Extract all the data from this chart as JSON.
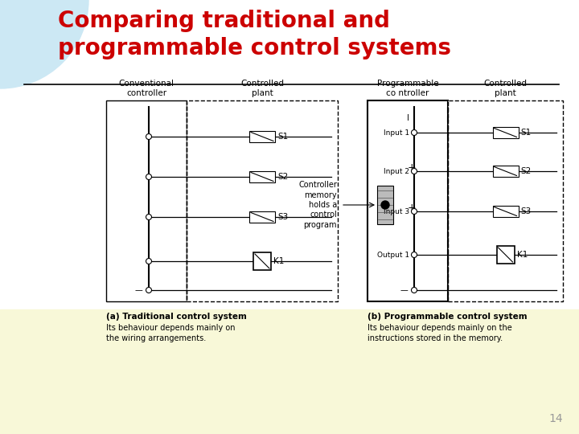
{
  "title_line1": "Comparing traditional and",
  "title_line2": "programmable control systems",
  "title_color": "#cc0000",
  "title_fontsize": 20,
  "bg_color": "#ffffff",
  "page_number": "14",
  "left_diagram": {
    "header_ctrl": "Conventional\ncontroller",
    "header_plant": "Controlled\nplant",
    "caption_bold": "(a) Traditional control system",
    "caption_text": "Its behaviour depends mainly on\nthe wiring arrangements."
  },
  "right_diagram": {
    "header_ctrl": "Programmable\nco ntroller",
    "header_plant": "Controlled\nplant",
    "memory_label": "Controller\nmemory\nholds a\ncontrol\nprogram",
    "caption_bold": "(b) Programmable control system",
    "caption_text": "Its behaviour depends mainly on the\ninstructions stored in the memory."
  }
}
